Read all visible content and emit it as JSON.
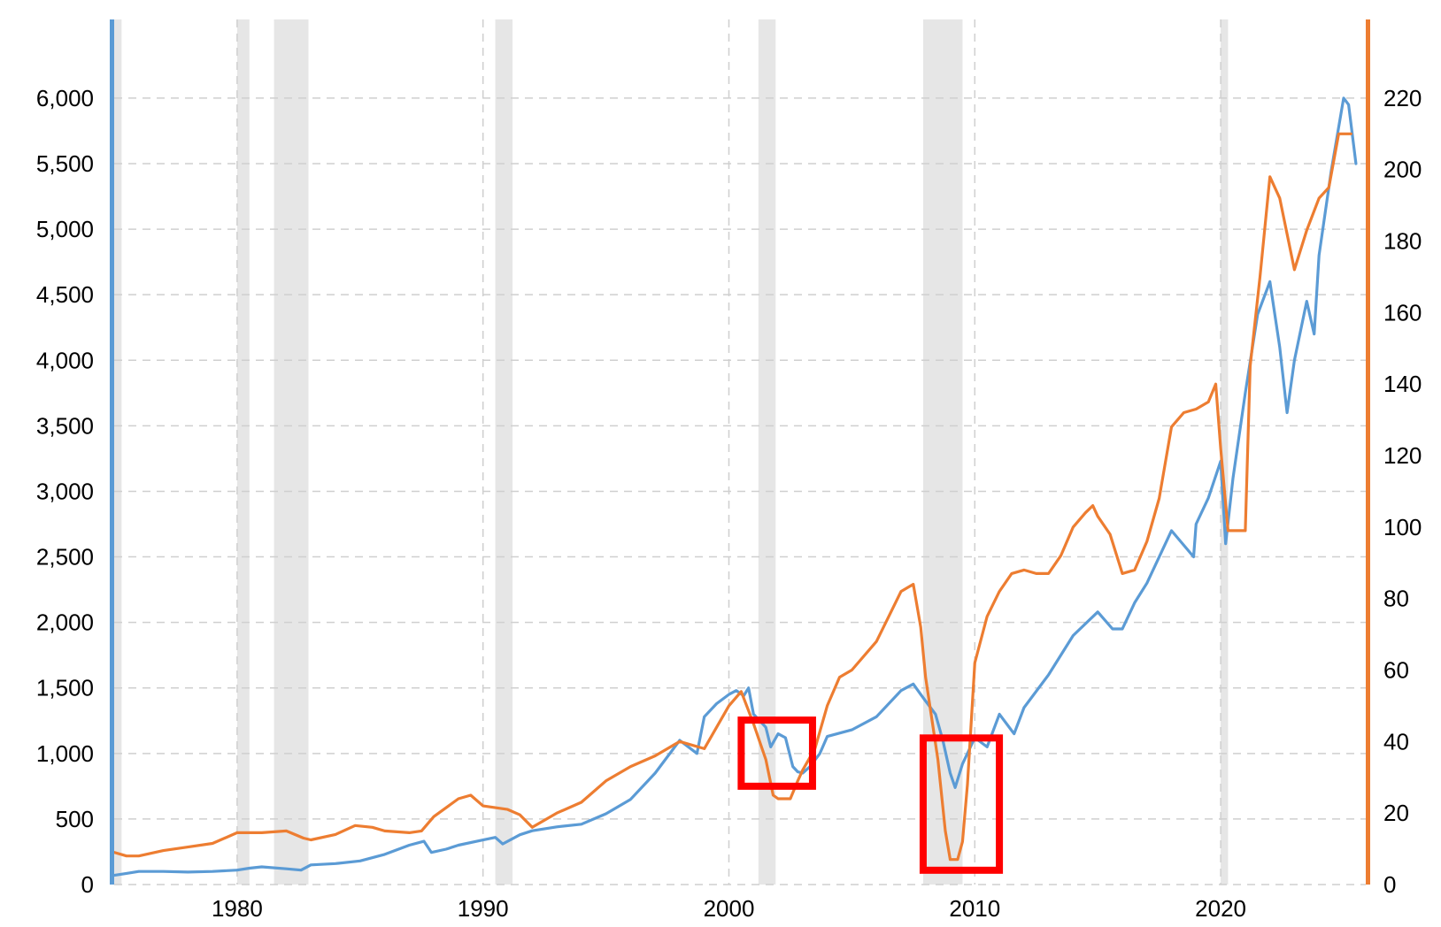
{
  "chart_data": {
    "type": "line",
    "title": "",
    "xlabel": "",
    "ylabel": "",
    "y2label": "",
    "xlim": [
      1975.0,
      2025.9
    ],
    "xticks": [
      1980,
      1990,
      2000,
      2010,
      2020
    ],
    "ylim": [
      0,
      6600
    ],
    "yticks": [
      0,
      500,
      1000,
      1500,
      2000,
      2500,
      3000,
      3500,
      4000,
      4500,
      5000,
      5500,
      6000
    ],
    "ytick_labels": [
      "0",
      "500",
      "1,000",
      "1,500",
      "2,000",
      "2,500",
      "3,000",
      "3,500",
      "4,000",
      "4,500",
      "5,000",
      "5,500",
      "6,000"
    ],
    "y2lim": [
      0,
      242
    ],
    "y2ticks": [
      0,
      20,
      40,
      60,
      80,
      100,
      120,
      140,
      160,
      180,
      200,
      220
    ],
    "y2tick_labels": [
      "0",
      "20",
      "40",
      "60",
      "80",
      "100",
      "120",
      "140",
      "160",
      "180",
      "200",
      "220"
    ],
    "grid": true,
    "legend": "none",
    "recessions": [
      [
        1975.0,
        1975.3
      ],
      [
        1980.0,
        1980.5
      ],
      [
        1981.5,
        1982.9
      ],
      [
        1990.5,
        1991.2
      ],
      [
        2001.2,
        2001.9
      ],
      [
        2007.9,
        2009.5
      ],
      [
        2020.0,
        2020.3
      ]
    ],
    "series": [
      {
        "axis": "left",
        "color": "#5b9bd5",
        "points": [
          [
            1975.0,
            70
          ],
          [
            1975.5,
            85
          ],
          [
            1976.0,
            100
          ],
          [
            1977.0,
            100
          ],
          [
            1978.0,
            95
          ],
          [
            1979.0,
            100
          ],
          [
            1980.0,
            110
          ],
          [
            1980.5,
            125
          ],
          [
            1981.0,
            135
          ],
          [
            1982.0,
            120
          ],
          [
            1982.6,
            110
          ],
          [
            1983.0,
            150
          ],
          [
            1984.0,
            160
          ],
          [
            1985.0,
            180
          ],
          [
            1986.0,
            230
          ],
          [
            1987.0,
            300
          ],
          [
            1987.6,
            330
          ],
          [
            1987.9,
            245
          ],
          [
            1988.5,
            270
          ],
          [
            1989.0,
            300
          ],
          [
            1990.0,
            340
          ],
          [
            1990.5,
            360
          ],
          [
            1990.8,
            310
          ],
          [
            1991.5,
            380
          ],
          [
            1992.0,
            410
          ],
          [
            1993.0,
            440
          ],
          [
            1994.0,
            460
          ],
          [
            1995.0,
            540
          ],
          [
            1996.0,
            650
          ],
          [
            1997.0,
            850
          ],
          [
            1998.0,
            1100
          ],
          [
            1998.7,
            1000
          ],
          [
            1999.0,
            1280
          ],
          [
            1999.5,
            1380
          ],
          [
            2000.0,
            1450
          ],
          [
            2000.3,
            1480
          ],
          [
            2000.6,
            1440
          ],
          [
            2000.8,
            1500
          ],
          [
            2001.0,
            1300
          ],
          [
            2001.5,
            1200
          ],
          [
            2001.7,
            1050
          ],
          [
            2002.0,
            1150
          ],
          [
            2002.3,
            1120
          ],
          [
            2002.6,
            900
          ],
          [
            2002.8,
            860
          ],
          [
            2003.0,
            850
          ],
          [
            2003.3,
            900
          ],
          [
            2003.7,
            1000
          ],
          [
            2004.0,
            1130
          ],
          [
            2005.0,
            1180
          ],
          [
            2006.0,
            1280
          ],
          [
            2007.0,
            1480
          ],
          [
            2007.5,
            1530
          ],
          [
            2007.8,
            1450
          ],
          [
            2008.0,
            1400
          ],
          [
            2008.4,
            1300
          ],
          [
            2008.7,
            1100
          ],
          [
            2009.0,
            850
          ],
          [
            2009.2,
            740
          ],
          [
            2009.5,
            920
          ],
          [
            2010.0,
            1120
          ],
          [
            2010.5,
            1050
          ],
          [
            2011.0,
            1300
          ],
          [
            2011.6,
            1150
          ],
          [
            2012.0,
            1350
          ],
          [
            2013.0,
            1600
          ],
          [
            2014.0,
            1900
          ],
          [
            2015.0,
            2080
          ],
          [
            2015.6,
            1950
          ],
          [
            2016.0,
            1950
          ],
          [
            2016.5,
            2150
          ],
          [
            2017.0,
            2300
          ],
          [
            2018.0,
            2700
          ],
          [
            2018.9,
            2500
          ],
          [
            2019.0,
            2750
          ],
          [
            2019.5,
            2950
          ],
          [
            2020.0,
            3230
          ],
          [
            2020.2,
            2600
          ],
          [
            2020.5,
            3100
          ],
          [
            2021.0,
            3750
          ],
          [
            2021.5,
            4350
          ],
          [
            2022.0,
            4600
          ],
          [
            2022.4,
            4100
          ],
          [
            2022.7,
            3600
          ],
          [
            2023.0,
            4000
          ],
          [
            2023.5,
            4450
          ],
          [
            2023.8,
            4200
          ],
          [
            2024.0,
            4800
          ],
          [
            2024.5,
            5450
          ],
          [
            2025.0,
            6000
          ],
          [
            2025.2,
            5950
          ],
          [
            2025.5,
            5500
          ]
        ]
      },
      {
        "axis": "right",
        "color": "#ed7d31",
        "points": [
          [
            1975.0,
            9
          ],
          [
            1975.5,
            8
          ],
          [
            1976.0,
            8
          ],
          [
            1977.0,
            9.5
          ],
          [
            1978.0,
            10.5
          ],
          [
            1979.0,
            11.5
          ],
          [
            1980.0,
            14.5
          ],
          [
            1981.0,
            14.5
          ],
          [
            1982.0,
            15
          ],
          [
            1982.7,
            13
          ],
          [
            1983.0,
            12.5
          ],
          [
            1984.0,
            14
          ],
          [
            1984.8,
            16.5
          ],
          [
            1985.5,
            16
          ],
          [
            1986.0,
            15
          ],
          [
            1987.0,
            14.5
          ],
          [
            1987.5,
            15
          ],
          [
            1988.0,
            19
          ],
          [
            1989.0,
            24
          ],
          [
            1989.5,
            25
          ],
          [
            1990.0,
            22
          ],
          [
            1991.0,
            21
          ],
          [
            1991.5,
            19.5
          ],
          [
            1992.0,
            16
          ],
          [
            1993.0,
            20
          ],
          [
            1994.0,
            23
          ],
          [
            1995.0,
            29
          ],
          [
            1996.0,
            33
          ],
          [
            1997.0,
            36
          ],
          [
            1998.0,
            40
          ],
          [
            1999.0,
            38
          ],
          [
            1999.5,
            44
          ],
          [
            2000.0,
            50
          ],
          [
            2000.5,
            54
          ],
          [
            2001.0,
            45
          ],
          [
            2001.5,
            35
          ],
          [
            2001.8,
            25
          ],
          [
            2002.0,
            24
          ],
          [
            2002.5,
            24
          ],
          [
            2002.8,
            29
          ],
          [
            2003.0,
            32
          ],
          [
            2003.5,
            38
          ],
          [
            2004.0,
            50
          ],
          [
            2004.5,
            58
          ],
          [
            2005.0,
            60
          ],
          [
            2006.0,
            68
          ],
          [
            2006.5,
            75
          ],
          [
            2007.0,
            82
          ],
          [
            2007.5,
            84
          ],
          [
            2007.8,
            72
          ],
          [
            2008.0,
            58
          ],
          [
            2008.5,
            35
          ],
          [
            2008.8,
            15
          ],
          [
            2009.0,
            7
          ],
          [
            2009.3,
            7
          ],
          [
            2009.5,
            12
          ],
          [
            2009.7,
            28
          ],
          [
            2010.0,
            62
          ],
          [
            2010.5,
            75
          ],
          [
            2011.0,
            82
          ],
          [
            2011.5,
            87
          ],
          [
            2012.0,
            88
          ],
          [
            2012.5,
            87
          ],
          [
            2013.0,
            87
          ],
          [
            2013.5,
            92
          ],
          [
            2014.0,
            100
          ],
          [
            2014.5,
            104
          ],
          [
            2014.8,
            106
          ],
          [
            2015.0,
            103
          ],
          [
            2015.5,
            98
          ],
          [
            2016.0,
            87
          ],
          [
            2016.5,
            88
          ],
          [
            2017.0,
            96
          ],
          [
            2017.5,
            108
          ],
          [
            2018.0,
            128
          ],
          [
            2018.5,
            132
          ],
          [
            2019.0,
            133
          ],
          [
            2019.5,
            135
          ],
          [
            2019.8,
            140
          ],
          [
            2020.0,
            122
          ],
          [
            2020.3,
            99
          ],
          [
            2020.7,
            99
          ],
          [
            2021.0,
            99
          ],
          [
            2021.2,
            145
          ],
          [
            2021.6,
            170
          ],
          [
            2022.0,
            198
          ],
          [
            2022.4,
            192
          ],
          [
            2022.7,
            182
          ],
          [
            2023.0,
            172
          ],
          [
            2023.5,
            183
          ],
          [
            2024.0,
            192
          ],
          [
            2024.4,
            195
          ],
          [
            2024.8,
            210
          ],
          [
            2025.0,
            210
          ],
          [
            2025.3,
            210
          ]
        ]
      }
    ]
  },
  "annotations": [
    {
      "shape": "box",
      "color": "#ff0000",
      "from": [
        2000.5,
        27.5
      ],
      "to": [
        2003.4,
        46
      ]
    },
    {
      "shape": "box",
      "color": "#ff0000",
      "from": [
        2007.9,
        4
      ],
      "to": [
        2011.0,
        41
      ]
    }
  ]
}
